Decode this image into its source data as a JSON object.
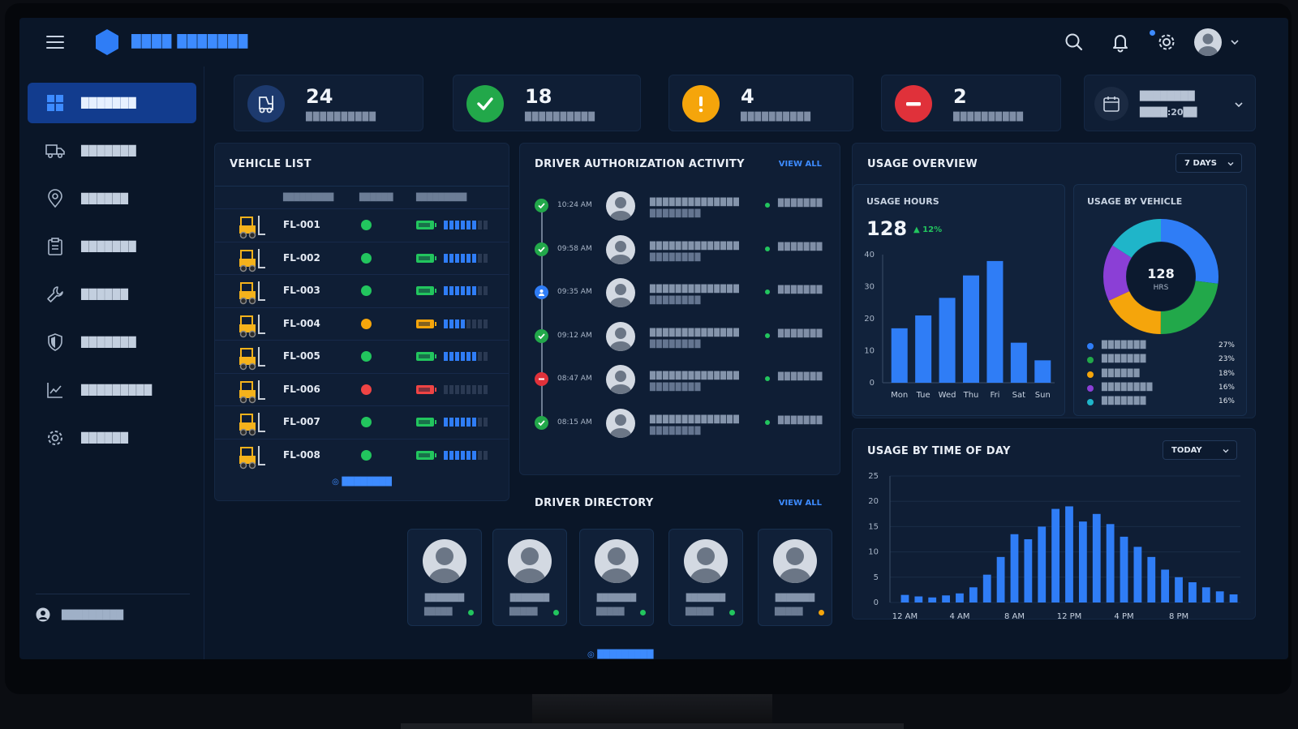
{
  "brand": {
    "name": "████ ███████"
  },
  "sidebar": {
    "items": [
      {
        "label": "███████",
        "icon": "dashboard-grid-icon",
        "active": true
      },
      {
        "label": "███████",
        "icon": "truck-icon"
      },
      {
        "label": "██████",
        "icon": "location-pin-icon"
      },
      {
        "label": "███████",
        "icon": "clipboard-icon"
      },
      {
        "label": "██████",
        "icon": "wrench-icon"
      },
      {
        "label": "███████",
        "icon": "shield-icon"
      },
      {
        "label": "█████████",
        "icon": "trend-chart-icon"
      },
      {
        "label": "██████",
        "icon": "gear-icon"
      }
    ],
    "user": {
      "label": "█████████"
    }
  },
  "kpis": [
    {
      "value": "24",
      "label": "██████████",
      "icon": "forklift-icon",
      "color": "#1d3a6e"
    },
    {
      "value": "18",
      "label": "██████████",
      "icon": "check-icon",
      "color": "#22a84a"
    },
    {
      "value": "4",
      "label": "██████████",
      "icon": "exclamation-icon",
      "color": "#f5a50b"
    },
    {
      "value": "2",
      "label": "██████████",
      "icon": "minus-icon",
      "color": "#e0313a"
    }
  ],
  "date_range": {
    "line1": "████████",
    "line2": "████:20██",
    "icon": "calendar-icon"
  },
  "vehicle_list": {
    "title": "VEHICLE LIST",
    "columns": [
      "█████████",
      "██████",
      "█████████"
    ],
    "rows": [
      {
        "id": "FL-001",
        "status": "#22c55e",
        "battery": "#22c55e",
        "signal": 6
      },
      {
        "id": "FL-002",
        "status": "#22c55e",
        "battery": "#22c55e",
        "signal": 6
      },
      {
        "id": "FL-003",
        "status": "#22c55e",
        "battery": "#22c55e",
        "signal": 6
      },
      {
        "id": "FL-004",
        "status": "#f5a50b",
        "battery": "#f5a50b",
        "signal": 4
      },
      {
        "id": "FL-005",
        "status": "#22c55e",
        "battery": "#22c55e",
        "signal": 6
      },
      {
        "id": "FL-006",
        "status": "#ef4444",
        "battery": "#ef4444",
        "signal": 0
      },
      {
        "id": "FL-007",
        "status": "#22c55e",
        "battery": "#22c55e",
        "signal": 6
      },
      {
        "id": "FL-008",
        "status": "#22c55e",
        "battery": "#22c55e",
        "signal": 6
      }
    ],
    "footer": "████████"
  },
  "activity": {
    "title": "DRIVER AUTHORIZATION ACTIVITY",
    "view_all": "VIEW ALL",
    "items": [
      {
        "time": "10:24 AM",
        "kind": "check",
        "color": "#22a84a",
        "line1": "██████████████",
        "line2": "████████",
        "right": "███████"
      },
      {
        "time": "09:58 AM",
        "kind": "check",
        "color": "#22a84a",
        "line1": "██████████████",
        "line2": "████████",
        "right": "███████"
      },
      {
        "time": "09:35 AM",
        "kind": "user",
        "color": "#2f7df6",
        "line1": "██████████████",
        "line2": "████████",
        "right": "███████"
      },
      {
        "time": "09:12 AM",
        "kind": "check",
        "color": "#22a84a",
        "line1": "██████████████",
        "line2": "████████",
        "right": "███████"
      },
      {
        "time": "08:47 AM",
        "kind": "minus",
        "color": "#e0313a",
        "line1": "██████████████",
        "line2": "████████",
        "right": "███████"
      },
      {
        "time": "08:15 AM",
        "kind": "check",
        "color": "#22a84a",
        "line1": "██████████████",
        "line2": "████████",
        "right": "███████"
      }
    ]
  },
  "directory": {
    "title": "DRIVER DIRECTORY",
    "view_all": "VIEW ALL",
    "drivers": [
      {
        "name": "███████",
        "role": "█████",
        "status": "#22c55e"
      },
      {
        "name": "███████",
        "role": "█████",
        "status": "#22c55e"
      },
      {
        "name": "███████",
        "role": "█████",
        "status": "#22c55e"
      },
      {
        "name": "███████",
        "role": "█████",
        "status": "#22c55e"
      },
      {
        "name": "███████",
        "role": "█████",
        "status": "#f5a50b"
      }
    ],
    "footer": "█████████"
  },
  "usage_overview": {
    "title": "USAGE OVERVIEW",
    "range": "7 DAYS",
    "hours": {
      "title": "USAGE HOURS",
      "value": "128",
      "delta": "12%"
    },
    "by_vehicle": {
      "title": "USAGE BY VEHICLE",
      "center_value": "128",
      "center_unit": "HRS",
      "legend": [
        {
          "name": "███████",
          "pct": "27%",
          "color": "#2f7df6"
        },
        {
          "name": "███████",
          "pct": "23%",
          "color": "#22a84a"
        },
        {
          "name": "██████",
          "pct": "18%",
          "color": "#f5a50b"
        },
        {
          "name": "████████",
          "pct": "16%",
          "color": "#8b3fd6"
        },
        {
          "name": "███████",
          "pct": "16%",
          "color": "#1fb5c9"
        }
      ]
    }
  },
  "time_of_day": {
    "title": "USAGE BY TIME OF DAY",
    "range": "TODAY"
  },
  "chart_data": [
    {
      "type": "bar",
      "categories": [
        "Mon",
        "Tue",
        "Wed",
        "Thu",
        "Fri",
        "Sat",
        "Sun"
      ],
      "values": [
        17,
        21,
        26.5,
        33.5,
        38,
        12.5,
        7
      ],
      "ylim": [
        0,
        40
      ],
      "yticks": [
        0,
        10,
        20,
        30,
        40
      ],
      "color": "#2f7df6"
    },
    {
      "type": "pie",
      "labels": [
        "███████",
        "███████",
        "██████",
        "████████",
        "███████"
      ],
      "values": [
        27,
        23,
        18,
        16,
        16
      ],
      "colors": [
        "#2f7df6",
        "#22a84a",
        "#f5a50b",
        "#8b3fd6",
        "#1fb5c9"
      ]
    },
    {
      "type": "bar",
      "x_tick_labels": [
        "12 AM",
        "4 AM",
        "8 AM",
        "12 PM",
        "4 PM",
        "8 PM"
      ],
      "values": [
        1.5,
        1.2,
        1,
        1.4,
        1.8,
        3,
        5.5,
        9,
        13.5,
        12.5,
        15,
        18.5,
        19,
        16,
        17.5,
        15.5,
        13,
        11,
        9,
        6.5,
        5,
        4,
        3,
        2.2,
        1.6
      ],
      "ylim": [
        0,
        25
      ],
      "yticks": [
        0,
        5,
        10,
        15,
        20,
        25
      ],
      "color": "#2f7df6"
    }
  ]
}
